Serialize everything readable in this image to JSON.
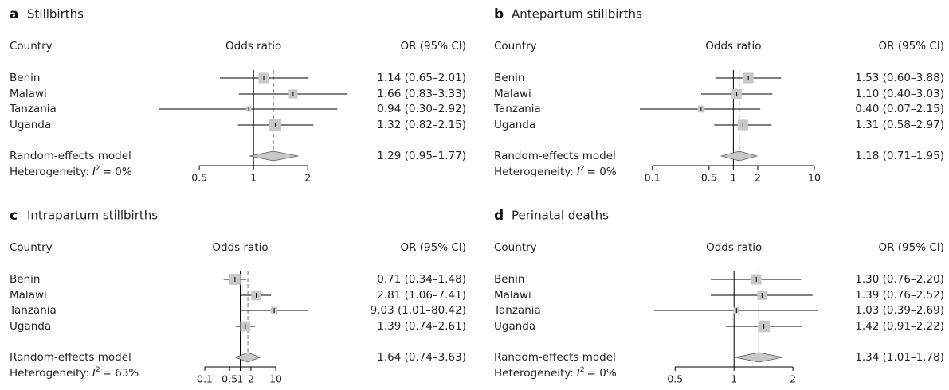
{
  "chart_data": [
    {
      "type": "forest",
      "panel": "a",
      "title": "Stillbirths",
      "column_headers": [
        "Country",
        "Odds ratio",
        "OR (95% CI)"
      ],
      "categories": [
        "Benin",
        "Malawi",
        "Tanzania",
        "Uganda"
      ],
      "values": [
        1.14,
        1.66,
        0.94,
        1.32
      ],
      "lower": [
        0.65,
        0.83,
        0.3,
        0.82
      ],
      "upper": [
        2.01,
        3.33,
        2.92,
        2.15
      ],
      "weights": [
        30,
        22,
        8,
        40
      ],
      "value_labels": [
        "1.14 (0.65–2.01)",
        "1.66 (0.83–3.33)",
        "0.94 (0.30–2.92)",
        "1.32 (0.82–2.15)"
      ],
      "summary": {
        "label": "Random-effects model",
        "value": 1.29,
        "lower": 0.95,
        "upper": 1.77,
        "value_label": "1.29 (0.95–1.77)"
      },
      "heterogeneity": {
        "prefix": "Heterogeneity:",
        "symbol": "I",
        "superscript": "2",
        "suffix": "= 0%"
      },
      "log_x": true,
      "null_line": 1,
      "color": "#c8c8c8",
      "xlim": [
        0.3,
        3
      ],
      "xticks": [
        0.5,
        1,
        2
      ]
    },
    {
      "type": "forest",
      "panel": "b",
      "title": "Antepartum stillbirths",
      "column_headers": [
        "Country",
        "Odds ratio",
        "OR (95% CI)"
      ],
      "categories": [
        "Benin",
        "Malawi",
        "Tanzania",
        "Uganda"
      ],
      "values": [
        1.53,
        1.1,
        0.4,
        1.31
      ],
      "lower": [
        0.6,
        0.4,
        0.07,
        0.58
      ],
      "upper": [
        3.88,
        3.03,
        2.15,
        2.97
      ],
      "weights": [
        30,
        27,
        13,
        30
      ],
      "value_labels": [
        "1.53 (0.60–3.88)",
        "1.10 (0.40–3.03)",
        "0.40 (0.07–2.15)",
        "1.31 (0.58–2.97)"
      ],
      "summary": {
        "label": "Random-effects model",
        "value": 1.18,
        "lower": 0.71,
        "upper": 1.95,
        "value_label": "1.18 (0.71–1.95)"
      },
      "heterogeneity": {
        "prefix": "Heterogeneity:",
        "symbol": "I",
        "superscript": "2",
        "suffix": "= 0%"
      },
      "log_x": true,
      "null_line": 1,
      "color": "#c8c8c8",
      "xlim": [
        0.07,
        10
      ],
      "xticks": [
        0.1,
        0.5,
        1,
        2,
        10
      ]
    },
    {
      "type": "forest",
      "panel": "c",
      "title": "Intrapartum stillbirths",
      "column_headers": [
        "Country",
        "Odds ratio",
        "OR (95% CI)"
      ],
      "categories": [
        "Benin",
        "Malawi",
        "Tanzania",
        "Uganda"
      ],
      "values": [
        0.71,
        2.81,
        9.03,
        1.39
      ],
      "lower": [
        0.34,
        1.06,
        1.01,
        0.74
      ],
      "upper": [
        1.48,
        7.41,
        80.42,
        2.61
      ],
      "weights": [
        33,
        27,
        12,
        28
      ],
      "value_labels": [
        "0.71 (0.34–1.48)",
        "2.81 (1.06–7.41)",
        "9.03 (1.01–80.42)",
        "1.39 (0.74–2.61)"
      ],
      "summary": {
        "label": "Random-effects model",
        "value": 1.64,
        "lower": 0.74,
        "upper": 3.63,
        "value_label": "1.64 (0.74–3.63)"
      },
      "heterogeneity": {
        "prefix": "Heterogeneity:",
        "symbol": "I",
        "superscript": "2",
        "suffix": "= 63%"
      },
      "log_x": true,
      "null_line": 1,
      "color": "#c8c8c8",
      "xlim": [
        0.1,
        81
      ],
      "xticks": [
        0.1,
        0.5,
        1,
        2,
        10
      ]
    },
    {
      "type": "forest",
      "panel": "d",
      "title": "Perinatal deaths",
      "column_headers": [
        "Country",
        "Odds ratio",
        "OR (95% CI)"
      ],
      "categories": [
        "Benin",
        "Malawi",
        "Tanzania",
        "Uganda"
      ],
      "values": [
        1.3,
        1.39,
        1.03,
        1.42
      ],
      "lower": [
        0.76,
        0.76,
        0.39,
        0.91
      ],
      "upper": [
        2.2,
        2.52,
        2.69,
        2.22
      ],
      "weights": [
        29,
        24,
        10,
        37
      ],
      "value_labels": [
        "1.30 (0.76–2.20)",
        "1.39 (0.76–2.52)",
        "1.03 (0.39–2.69)",
        "1.42 (0.91–2.22)"
      ],
      "summary": {
        "label": "Random-effects model",
        "value": 1.34,
        "lower": 1.01,
        "upper": 1.78,
        "value_label": "1.34 (1.01–1.78)"
      },
      "heterogeneity": {
        "prefix": "Heterogeneity:",
        "symbol": "I",
        "superscript": "2",
        "suffix": "= 0%"
      },
      "log_x": true,
      "null_line": 1,
      "color": "#c8c8c8",
      "xlim": [
        0.38,
        2.8
      ],
      "xticks": [
        0.5,
        1,
        2
      ]
    }
  ]
}
